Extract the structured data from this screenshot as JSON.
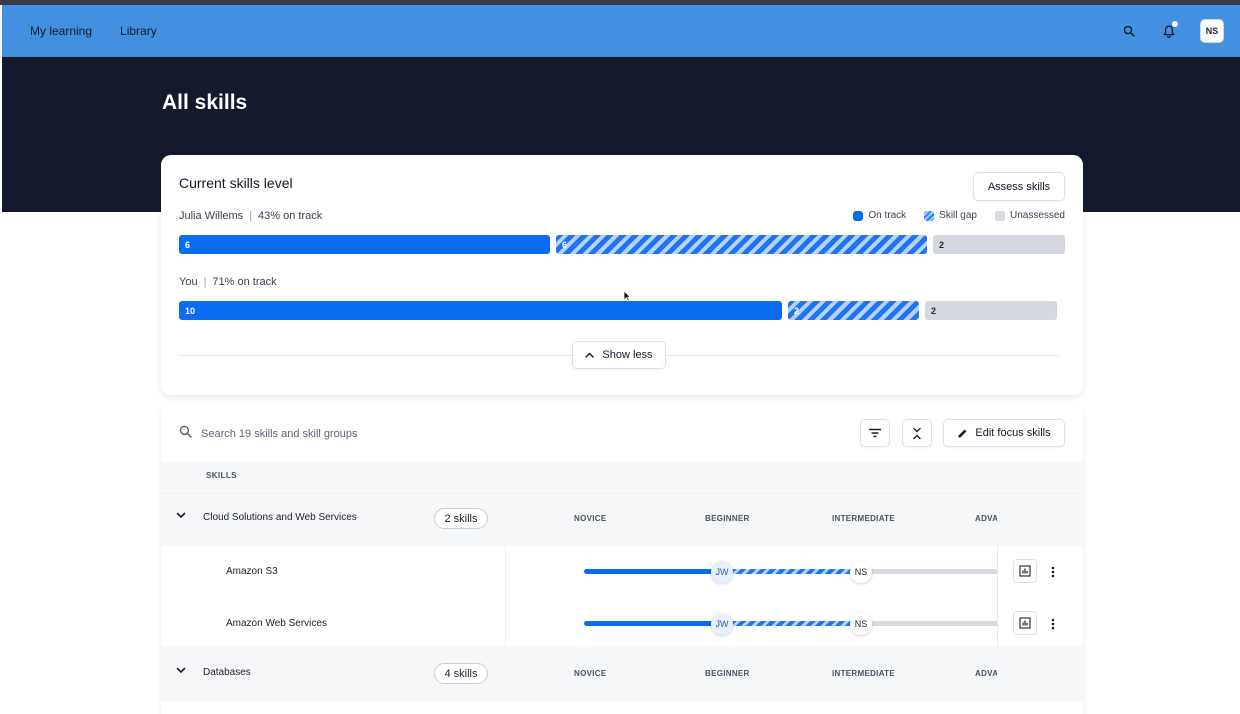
{
  "nav": {
    "links": [
      "My learning",
      "Library"
    ],
    "avatar_initials": "NS",
    "icons": [
      "search-icon",
      "bell-icon"
    ]
  },
  "hero": {
    "title": "All skills"
  },
  "skills_level": {
    "title": "Current skills level",
    "assess_button": "Assess skills",
    "legend": {
      "on_track": "On track",
      "skill_gap": "Skill gap",
      "unassessed": "Unassessed"
    },
    "colors": {
      "on_track": "#0a6cf0",
      "skill_gap": "#1f74ef",
      "unassessed": "#d5d8de"
    },
    "rows": [
      {
        "name": "Julia Willems",
        "summary": "43% on track",
        "on_track": 6,
        "skill_gap": 6,
        "unassessed": 2
      },
      {
        "name": "You",
        "summary": "71% on track",
        "on_track": 10,
        "skill_gap": 2,
        "unassessed": 2
      }
    ],
    "show_less_button": "Show less"
  },
  "skills_table": {
    "search_placeholder": "Search 19 skills and skill groups",
    "edit_button": "Edit focus skills",
    "header_skills": "SKILLS",
    "levels": [
      "NOVICE",
      "BEGINNER",
      "INTERMEDIATE",
      "ADVA"
    ],
    "groups": [
      {
        "name": "Cloud Solutions and Web Services",
        "count_label": "2 skills",
        "skills": [
          {
            "name": "Amazon S3",
            "marker_1": "JW",
            "marker_2": "NS",
            "level_1": 1.0,
            "level_2": 2.0
          },
          {
            "name": "Amazon Web Services",
            "marker_1": "JW",
            "marker_2": "NS",
            "level_1": 1.0,
            "level_2": 2.0
          }
        ]
      },
      {
        "name": "Databases",
        "count_label": "4 skills"
      }
    ]
  }
}
